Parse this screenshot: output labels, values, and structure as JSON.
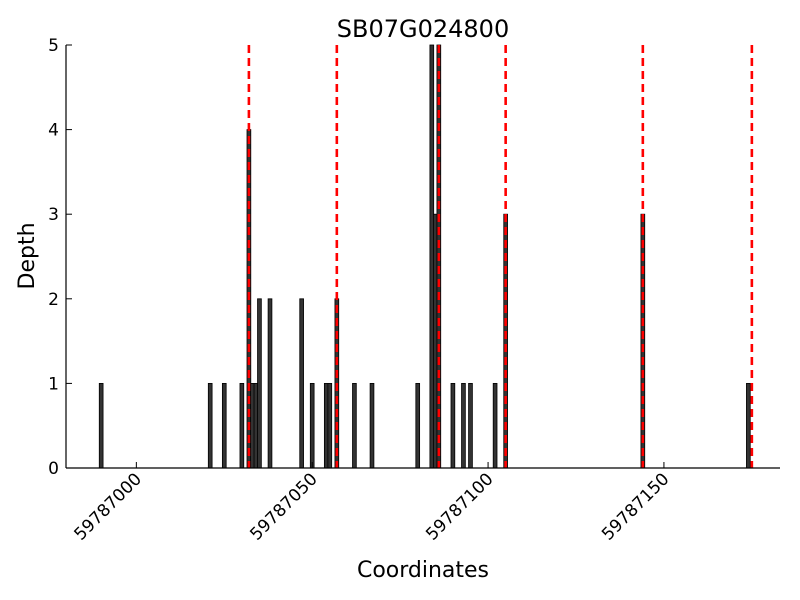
{
  "chart_data": {
    "type": "bar",
    "title": "SB07G024800",
    "xlabel": "Coordinates",
    "ylabel": "Depth",
    "xlim": [
      59786980,
      59787183
    ],
    "ylim": [
      0,
      5
    ],
    "x_ticks": [
      59787000,
      59787050,
      59787100,
      59787150
    ],
    "x_tick_labels": [
      "59787000",
      "59787050",
      "59787100",
      "59787150"
    ],
    "y_ticks": [
      0,
      1,
      2,
      3,
      4,
      5
    ],
    "y_tick_labels": [
      "0",
      "1",
      "2",
      "3",
      "4",
      "5"
    ],
    "grid": false,
    "legend": "none",
    "bar_color": "#333333",
    "marker_color": "#ff0000",
    "bars": [
      {
        "x": 59786990,
        "depth": 1
      },
      {
        "x": 59787021,
        "depth": 1
      },
      {
        "x": 59787025,
        "depth": 1
      },
      {
        "x": 59787030,
        "depth": 1
      },
      {
        "x": 59787032,
        "depth": 4
      },
      {
        "x": 59787033,
        "depth": 1
      },
      {
        "x": 59787034,
        "depth": 1
      },
      {
        "x": 59787035,
        "depth": 2
      },
      {
        "x": 59787038,
        "depth": 2
      },
      {
        "x": 59787047,
        "depth": 2
      },
      {
        "x": 59787050,
        "depth": 1
      },
      {
        "x": 59787054,
        "depth": 1
      },
      {
        "x": 59787055,
        "depth": 1
      },
      {
        "x": 59787057,
        "depth": 2
      },
      {
        "x": 59787062,
        "depth": 1
      },
      {
        "x": 59787067,
        "depth": 1
      },
      {
        "x": 59787080,
        "depth": 1
      },
      {
        "x": 59787084,
        "depth": 5
      },
      {
        "x": 59787085,
        "depth": 3
      },
      {
        "x": 59787086,
        "depth": 5
      },
      {
        "x": 59787090,
        "depth": 1
      },
      {
        "x": 59787093,
        "depth": 1
      },
      {
        "x": 59787095,
        "depth": 1
      },
      {
        "x": 59787102,
        "depth": 1
      },
      {
        "x": 59787105,
        "depth": 3
      },
      {
        "x": 59787144,
        "depth": 3
      },
      {
        "x": 59787174,
        "depth": 1
      }
    ],
    "vlines": [
      59787032,
      59787057,
      59787086,
      59787105,
      59787144,
      59787175
    ]
  }
}
